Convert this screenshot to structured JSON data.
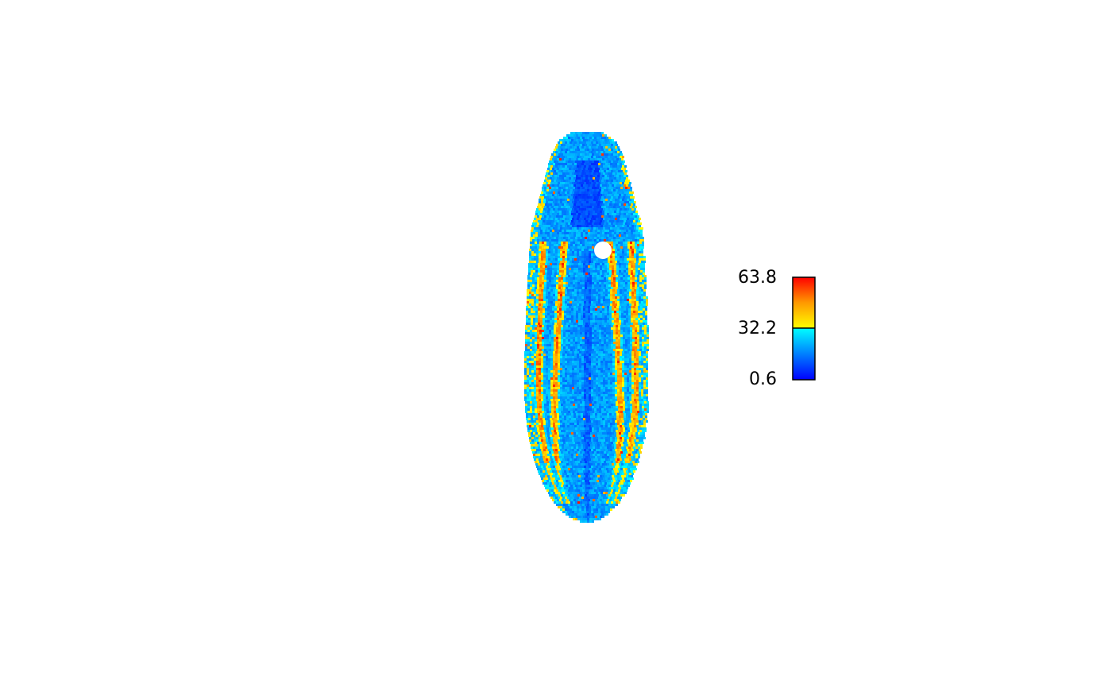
{
  "chart_data": {
    "type": "heatmap",
    "title": "",
    "xlabel": "",
    "ylabel": "",
    "grid": false,
    "legend": {
      "type": "colorbar",
      "placement": "right",
      "min": 0.6,
      "max": 63.8,
      "midpoint": 32.2,
      "tick_labels": [
        "63.8",
        "32.2",
        "0.6"
      ],
      "tick_values": [
        63.8,
        32.2,
        0.6
      ],
      "colors_low": [
        "#0000ff",
        "#0080ff",
        "#00ffff"
      ],
      "colors_high": [
        "#ffff00",
        "#ff9900",
        "#ff0000"
      ]
    },
    "value_range": [
      0.6,
      63.8
    ]
  }
}
